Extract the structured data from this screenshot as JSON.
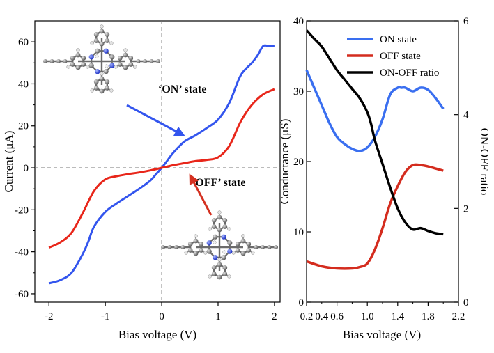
{
  "chart_data": [
    {
      "type": "line",
      "title": "",
      "xlabel": "Bias voltage (V)",
      "ylabel": "Current (μA)",
      "xlim": [
        -2.25,
        2.1
      ],
      "ylim": [
        -64,
        70
      ],
      "xticks": [
        -2,
        -1,
        0,
        1,
        2
      ],
      "xtick_labels": [
        "-2",
        "-1",
        "0",
        "1",
        "2"
      ],
      "yticks": [
        -60,
        -40,
        -20,
        0,
        20,
        40,
        60
      ],
      "ytick_labels": [
        "-60",
        "-40",
        "-20",
        "0",
        "20",
        "40",
        "60"
      ],
      "series": [
        {
          "name": "ON state",
          "color": "#3355ee",
          "x": [
            -2.0,
            -1.8,
            -1.6,
            -1.4,
            -1.3,
            -1.2,
            -1.0,
            -0.8,
            -0.6,
            -0.4,
            -0.2,
            -0.1,
            0.0,
            0.1,
            0.2,
            0.4,
            0.6,
            0.8,
            1.0,
            1.2,
            1.4,
            1.6,
            1.7,
            1.8,
            1.9,
            2.0
          ],
          "y": [
            -55,
            -53.5,
            -50,
            -41,
            -35,
            -28,
            -21,
            -17,
            -13.5,
            -10,
            -6,
            -3,
            0,
            3.5,
            7,
            12.5,
            15.5,
            19,
            23,
            31,
            44,
            50,
            53.5,
            58,
            58,
            58
          ]
        },
        {
          "name": "OFF state",
          "color": "#e8261a",
          "x": [
            -2.0,
            -1.8,
            -1.6,
            -1.4,
            -1.2,
            -1.0,
            -0.8,
            -0.6,
            -0.4,
            -0.2,
            0.0,
            0.2,
            0.4,
            0.6,
            0.8,
            1.0,
            1.2,
            1.4,
            1.6,
            1.8,
            2.0
          ],
          "y": [
            -38,
            -35.5,
            -31,
            -21.5,
            -11,
            -5.5,
            -4,
            -3,
            -2.2,
            -1.2,
            0,
            1.2,
            2.2,
            3.2,
            3.8,
            5,
            10.5,
            22,
            30,
            35,
            37.5
          ]
        }
      ],
      "annotations": [
        {
          "text": "‘ON’ state",
          "color": "#3355ee"
        },
        {
          "text": "‘OFF’ state",
          "color": "#e8261a"
        }
      ],
      "insets": [
        "molecule-on-state",
        "molecule-off-state"
      ]
    },
    {
      "type": "line",
      "title": "",
      "xlabel": "Bias voltage (V)",
      "ylabel": "Conductance (μS)",
      "ylabel_right": "ON-OFF ratio",
      "xlim": [
        0.2,
        2.2
      ],
      "ylim": [
        0,
        40
      ],
      "ylim_right": [
        0,
        6
      ],
      "xticks": [
        0.2,
        0.6,
        1.0,
        1.4,
        1.8,
        2.2
      ],
      "xtick_labels": [
        "0.2",
        "0.6",
        "1.0",
        "1.4",
        "1.8",
        "2.2"
      ],
      "xtick_minor": [
        0.4,
        0.8,
        1.2,
        1.6,
        2.0
      ],
      "xtick_minor_labels": [
        "0.4",
        "",
        "",
        "",
        ""
      ],
      "yticks": [
        0,
        10,
        20,
        30,
        40
      ],
      "ytick_labels": [
        "0",
        "10",
        "20",
        "30",
        "40"
      ],
      "yticks_right": [
        0,
        2,
        4,
        6
      ],
      "ytick_labels_right": [
        "0",
        "2",
        "4",
        "6"
      ],
      "series": [
        {
          "name": "ON  state",
          "color": "#3a6ff0",
          "axis": "left",
          "x": [
            0.2,
            0.3,
            0.4,
            0.5,
            0.6,
            0.7,
            0.8,
            0.9,
            1.0,
            1.1,
            1.2,
            1.3,
            1.4,
            1.45,
            1.5,
            1.6,
            1.7,
            1.8,
            1.9,
            2.0
          ],
          "y": [
            33,
            30.5,
            28,
            25.5,
            23.5,
            22.5,
            21.8,
            21.5,
            22,
            23.5,
            26,
            29.5,
            30.5,
            30.5,
            30.5,
            30,
            30.5,
            30.2,
            29,
            27.5
          ]
        },
        {
          "name": "OFF state",
          "color": "#d42c1e",
          "axis": "left",
          "x": [
            0.2,
            0.4,
            0.6,
            0.8,
            0.9,
            1.0,
            1.1,
            1.2,
            1.3,
            1.4,
            1.5,
            1.6,
            1.7,
            1.8,
            1.9,
            2.0
          ],
          "y": [
            5.8,
            5.1,
            4.8,
            4.8,
            5.0,
            5.5,
            7.5,
            10.5,
            14,
            16.5,
            18.5,
            19.5,
            19.5,
            19.3,
            19,
            18.7
          ]
        },
        {
          "name": "ON-OFF ratio",
          "color": "#000000",
          "axis": "right",
          "x": [
            0.2,
            0.3,
            0.4,
            0.5,
            0.6,
            0.7,
            0.8,
            0.9,
            1.0,
            1.05,
            1.1,
            1.2,
            1.3,
            1.4,
            1.5,
            1.6,
            1.7,
            1.8,
            1.9,
            2.0
          ],
          "y": [
            5.8,
            5.62,
            5.45,
            5.2,
            4.95,
            4.75,
            4.55,
            4.35,
            4.05,
            3.8,
            3.45,
            2.95,
            2.45,
            2.0,
            1.7,
            1.55,
            1.58,
            1.52,
            1.47,
            1.45
          ]
        }
      ],
      "legend": {
        "placement": "top-right",
        "entries": [
          {
            "label": "ON  state",
            "color": "#3a6ff0"
          },
          {
            "label": "OFF state",
            "color": "#d42c1e"
          },
          {
            "label": "ON-OFF ratio",
            "color": "#000000"
          }
        ]
      }
    }
  ]
}
